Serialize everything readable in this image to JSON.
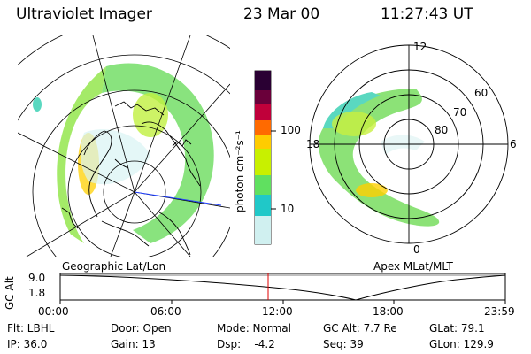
{
  "header": {
    "instrument": "Ultraviolet Imager",
    "date": "23 Mar 00",
    "time": "11:27:43 UT"
  },
  "left_panel": {
    "caption": "Geographic Lat/Lon"
  },
  "right_panel": {
    "caption": "Apex MLat/MLT",
    "mlt_labels": {
      "top": "12",
      "right": "6",
      "bottom": "0",
      "left": "18"
    },
    "lat_labels": [
      "60",
      "70",
      "80"
    ]
  },
  "colorbar": {
    "unit_label": "photon cm⁻²s⁻¹",
    "ticks": [
      "100",
      "10"
    ],
    "colors": [
      "#2a0033",
      "#6a003a",
      "#c0003a",
      "#ff6a00",
      "#ffcc00",
      "#c8f000",
      "#60e060",
      "#20c8c8",
      "#d0f0f0"
    ]
  },
  "altitude_plot": {
    "ylabel": "GC Alt",
    "yticks": [
      "9.0",
      "1.8"
    ],
    "xticks": [
      "00:00",
      "06:00",
      "12:00",
      "18:00",
      "23:59"
    ],
    "marker_time": "11:27",
    "marker_color": "#e00000"
  },
  "footer": {
    "filter": "Flt: LBHL",
    "door": "Door: Open",
    "mode": "Mode: Normal",
    "gc_alt": "GC Alt: 7.7 Re",
    "glat": "GLat:  79.1",
    "ip": "IP: 36.0",
    "gain": "Gain: 13",
    "dsp": "Dsp:    -4.2",
    "seq": "Seq: 39",
    "glon": "GLon: 129.9"
  }
}
